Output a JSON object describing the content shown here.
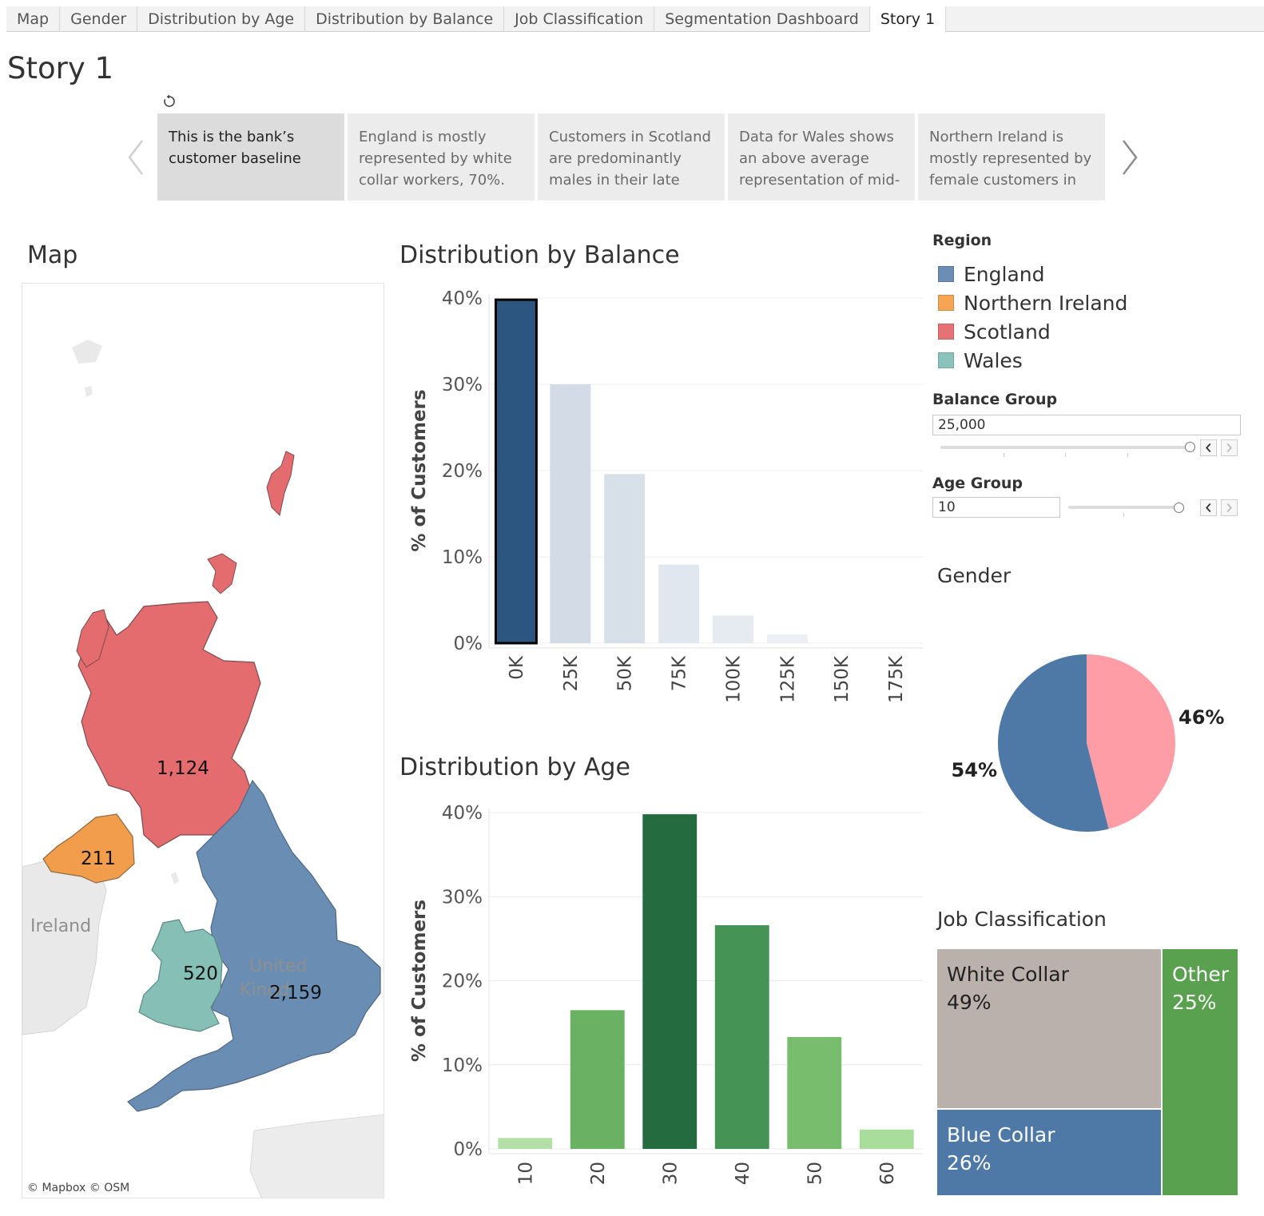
{
  "tabs": [
    {
      "label": "Map"
    },
    {
      "label": "Gender"
    },
    {
      "label": "Distribution by Age"
    },
    {
      "label": "Distribution by Balance"
    },
    {
      "label": "Job Classification"
    },
    {
      "label": "Segmentation Dashboard"
    },
    {
      "label": "Story 1",
      "active": true
    }
  ],
  "story": {
    "title": "Story 1",
    "points": [
      {
        "text": "This is the bank’s customer baseline",
        "active": true
      },
      {
        "text": "England is mostly represented by white collar workers, 70%."
      },
      {
        "text": "Customers in Scotland are predominantly males in their late"
      },
      {
        "text": "Data for Wales shows an above average representation of mid-"
      },
      {
        "text": "Northern Ireland is mostly represented by female customers in"
      }
    ]
  },
  "map": {
    "title": "Map",
    "regions": [
      {
        "name": "Scotland",
        "count": "1,124",
        "color": "#e46b6e"
      },
      {
        "name": "Northern Ireland",
        "count": "211",
        "color": "#f29d4b"
      },
      {
        "name": "Wales",
        "count": "520",
        "color": "#86bfb6"
      },
      {
        "name": "England",
        "count": "2,159",
        "color": "#6a8db4"
      }
    ],
    "background_labels": {
      "ireland": "Ireland",
      "uk_line1": "United",
      "uk_line2": "Kingd"
    },
    "attribution": "© Mapbox  © OSM"
  },
  "legend": {
    "title": "Region",
    "items": [
      {
        "label": "England",
        "color": "#6b8db6"
      },
      {
        "label": "Northern Ireland",
        "color": "#f6a555"
      },
      {
        "label": "Scotland",
        "color": "#e57375"
      },
      {
        "label": "Wales",
        "color": "#89c3bb"
      }
    ]
  },
  "filters": {
    "balance_group": {
      "label": "Balance Group",
      "value": "25,000"
    },
    "age_group": {
      "label": "Age Group",
      "value": "10"
    }
  },
  "chart_data": [
    {
      "id": "balance",
      "type": "bar",
      "title": "Distribution by Balance",
      "ylabel": "% of Customers",
      "xlabel": "",
      "categories": [
        "0K",
        "25K",
        "50K",
        "75K",
        "100K",
        "125K",
        "150K",
        "175K"
      ],
      "values": [
        39.8,
        30.0,
        19.6,
        9.1,
        3.2,
        1.0,
        0.0,
        0.0
      ],
      "ylim": [
        0,
        40
      ],
      "yticks": [
        "0%",
        "10%",
        "20%",
        "30%",
        "40%"
      ],
      "highlighted_category": "0K",
      "colors": {
        "highlight": "#2c567f",
        "other": [
          "#d3dce6",
          "#d7dfe8",
          "#e1e7ee",
          "#e6ebf1",
          "#ebeff3"
        ]
      },
      "grid": true
    },
    {
      "id": "age",
      "type": "bar",
      "title": "Distribution by Age",
      "ylabel": "% of Customers",
      "xlabel": "",
      "categories": [
        "10",
        "20",
        "30",
        "40",
        "50",
        "60"
      ],
      "values": [
        1.3,
        16.5,
        39.8,
        26.6,
        13.3,
        2.3
      ],
      "ylim": [
        0,
        40
      ],
      "yticks": [
        "0%",
        "10%",
        "20%",
        "30%",
        "40%"
      ],
      "colors": [
        "#b3dfa7",
        "#6bb163",
        "#246b40",
        "#469356",
        "#77bd6d",
        "#a9dd9c"
      ],
      "grid": true
    },
    {
      "id": "gender",
      "type": "pie",
      "title": "Gender",
      "slices": [
        {
          "label": "54%",
          "value": 54,
          "color": "#4e79a7"
        },
        {
          "label": "46%",
          "value": 46,
          "color": "#ff9da7"
        }
      ]
    },
    {
      "id": "job",
      "type": "treemap",
      "title": "Job Classification",
      "cells": [
        {
          "label": "White Collar",
          "pct": "49%",
          "value": 49,
          "color": "#bab0ac",
          "text_color": "#222222"
        },
        {
          "label": "Blue Collar",
          "pct": "26%",
          "value": 26,
          "color": "#4e79a7",
          "text_color": "#ffffff"
        },
        {
          "label": "Other",
          "pct": "25%",
          "value": 25,
          "color": "#59a14f",
          "text_color": "#ffffff"
        }
      ]
    }
  ]
}
